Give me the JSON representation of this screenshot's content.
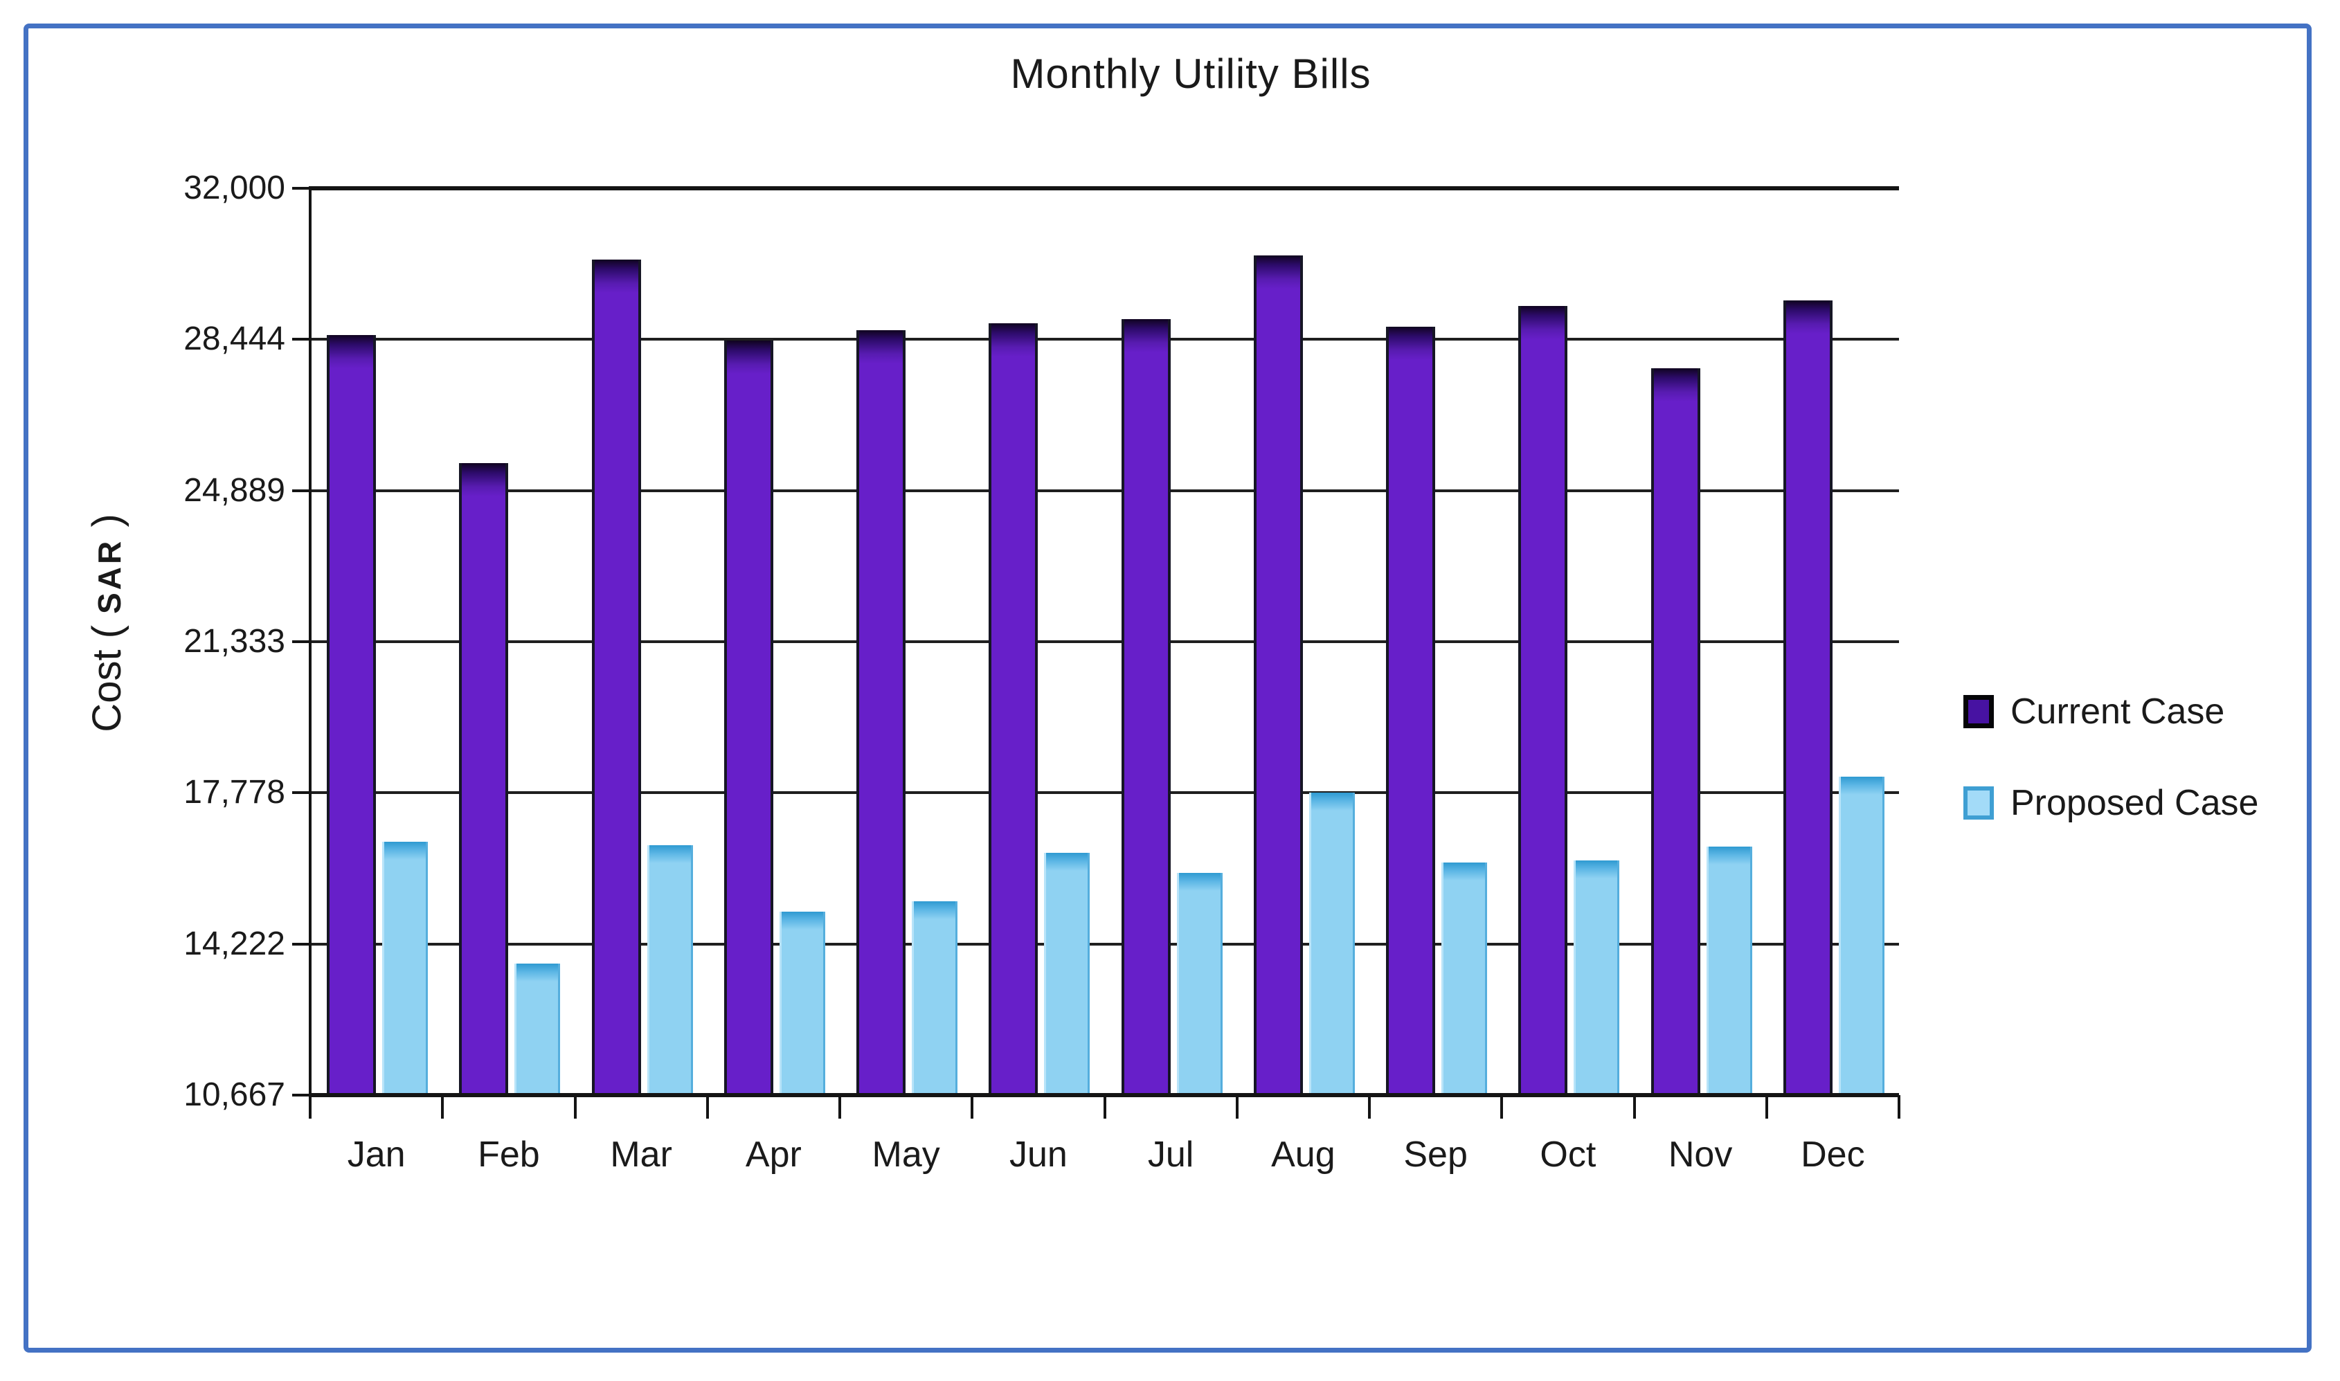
{
  "frame": {
    "border_color": "#4472c4",
    "background": "#ffffff"
  },
  "chart_data": {
    "type": "bar",
    "title": "Monthly Utility Bills",
    "ylabel": "Cost ( SAR )",
    "ylabel_prefix": "Cost ( ",
    "ylabel_unit": "SAR",
    "ylabel_suffix": " )",
    "categories": [
      "Jan",
      "Feb",
      "Mar",
      "Apr",
      "May",
      "Jun",
      "Jul",
      "Aug",
      "Sep",
      "Oct",
      "Nov",
      "Dec"
    ],
    "series": [
      {
        "name": "Current Case",
        "color": "#671fc9",
        "values": [
          28540,
          25530,
          30320,
          28420,
          28660,
          28820,
          28930,
          30420,
          28740,
          29230,
          27760,
          29370
        ]
      },
      {
        "name": "Proposed Case",
        "color": "#8fd2f2",
        "values": [
          16630,
          13760,
          16550,
          14980,
          15220,
          16360,
          15890,
          17780,
          16140,
          16180,
          16510,
          18150
        ]
      }
    ],
    "ylim": [
      10667,
      32000
    ],
    "y_ticks": [
      {
        "value": 10667,
        "label": "10,667"
      },
      {
        "value": 14222,
        "label": "14,222"
      },
      {
        "value": 17778,
        "label": "17,778"
      },
      {
        "value": 21333,
        "label": "21,333"
      },
      {
        "value": 24889,
        "label": "24,889"
      },
      {
        "value": 28444,
        "label": "28,444"
      },
      {
        "value": 32000,
        "label": "32,000"
      }
    ],
    "grid": true,
    "legend_position": "right"
  }
}
